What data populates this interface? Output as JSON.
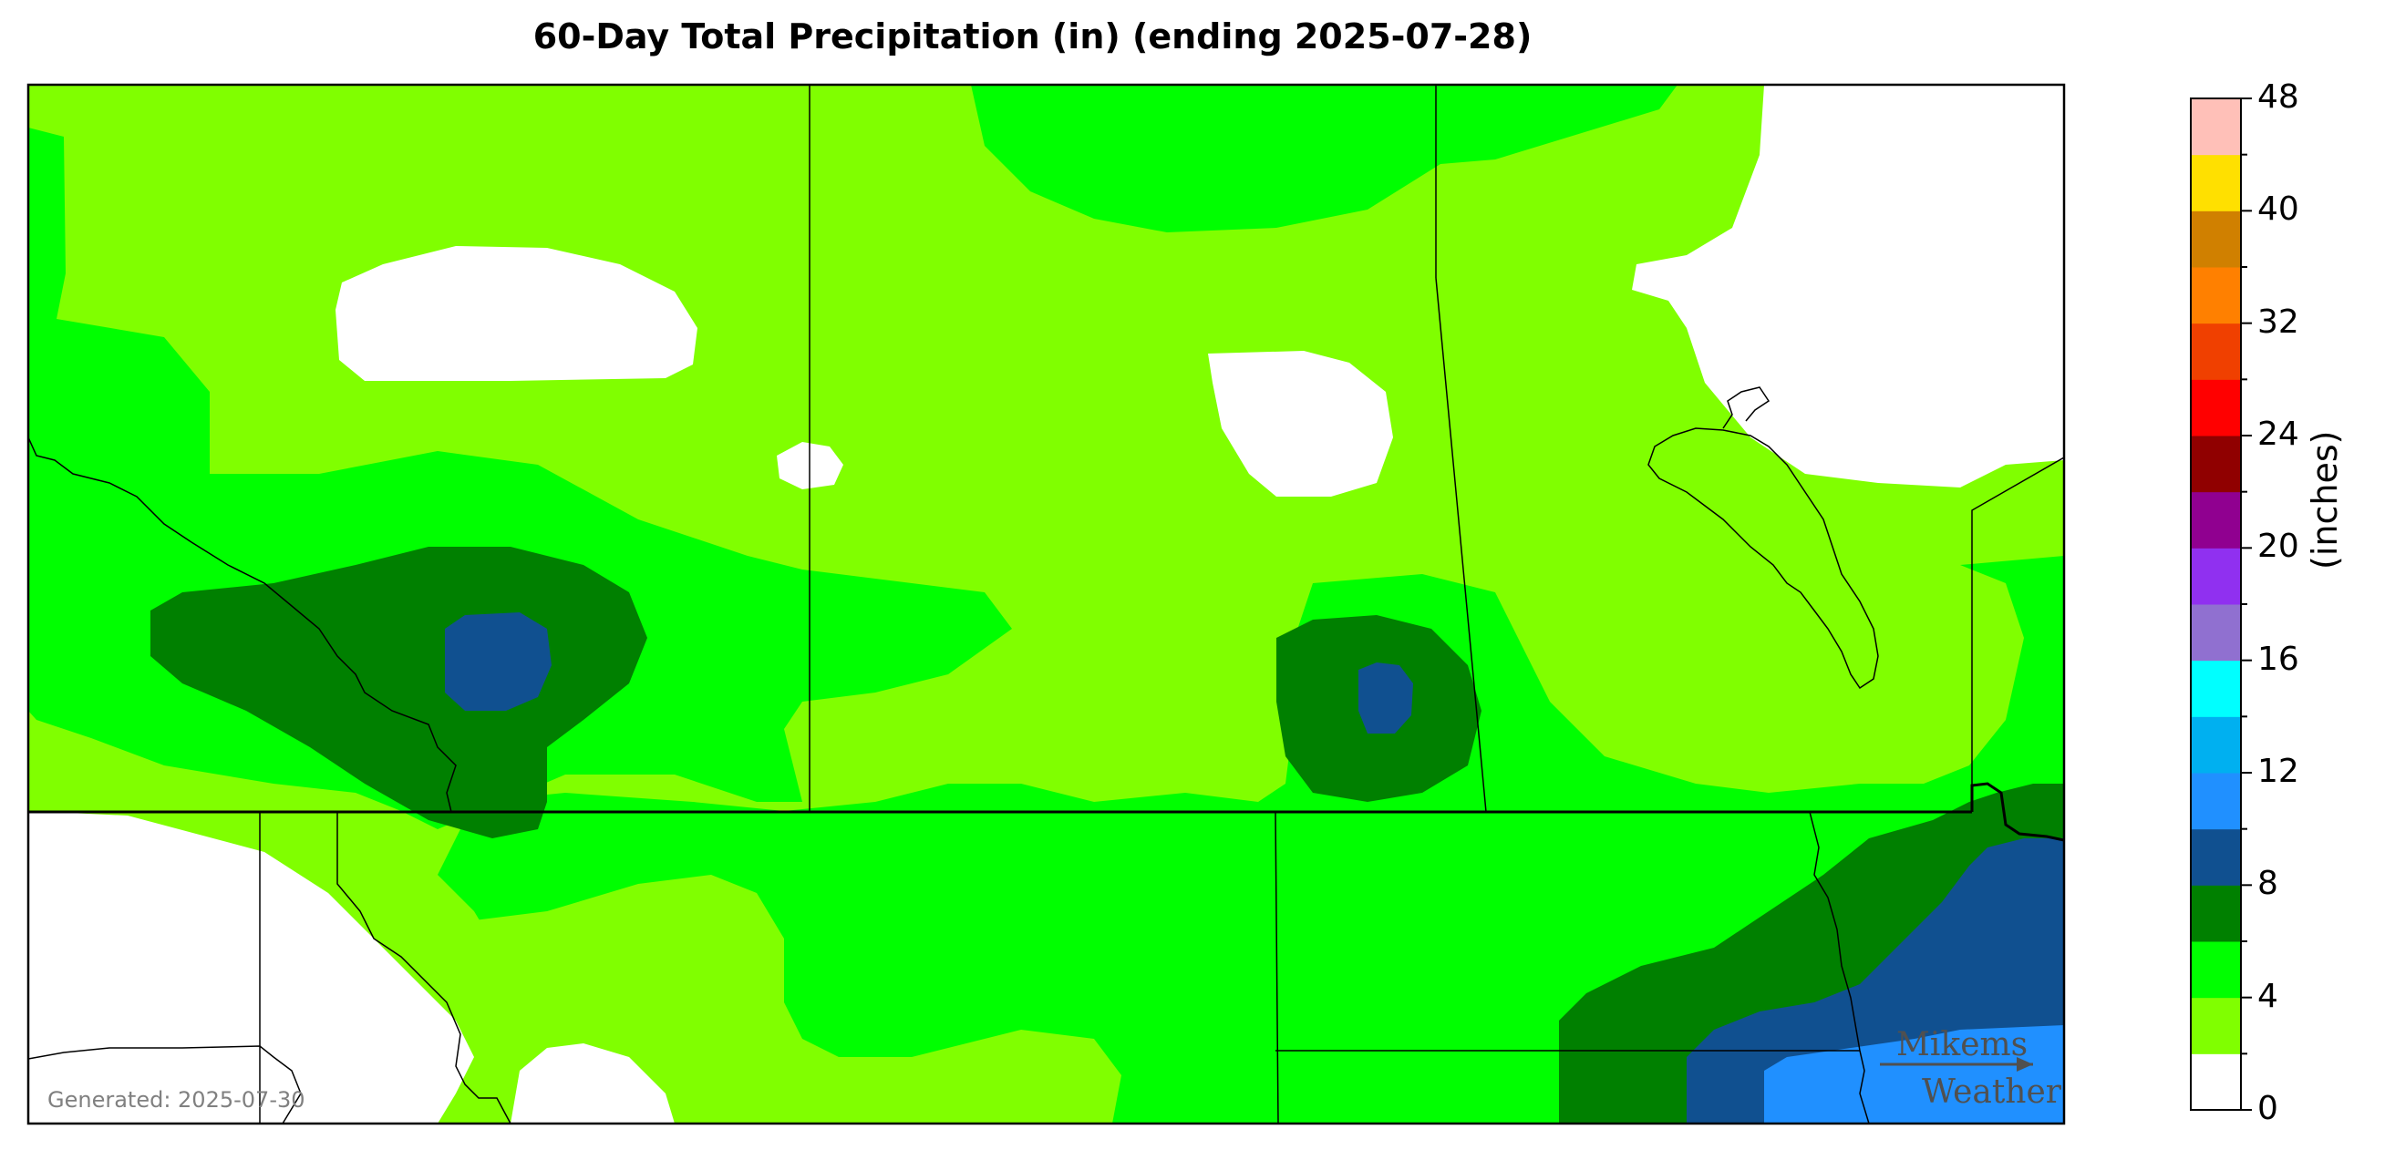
{
  "title": "60-Day Total Precipitation (in) (ending 2025-07-28)",
  "generated": "Generated: 2025-07-30",
  "colorbar": {
    "unit_label": "(inches)",
    "tick_labels": [
      "0",
      "4",
      "8",
      "12",
      "16",
      "20",
      "24",
      "32",
      "40",
      "48"
    ],
    "colors": [
      "#ffffff",
      "#80ff00",
      "#00ff00",
      "#008000",
      "#105090",
      "#2090ff",
      "#00b0f0",
      "#00ffff",
      "#9070d0",
      "#9030f0",
      "#900090",
      "#900000",
      "#ff0000",
      "#f04000",
      "#ff8000",
      "#d08000",
      "#ffe000",
      "#ffc0b8"
    ]
  },
  "watermark": {
    "line1": "Mikems",
    "line2": "Weather"
  },
  "map_colors": {
    "white": "#ffffff",
    "light_green": "#80ff00",
    "green": "#00ff00",
    "dark_green": "#008000",
    "navy": "#105090",
    "blue": "#2090ff"
  }
}
